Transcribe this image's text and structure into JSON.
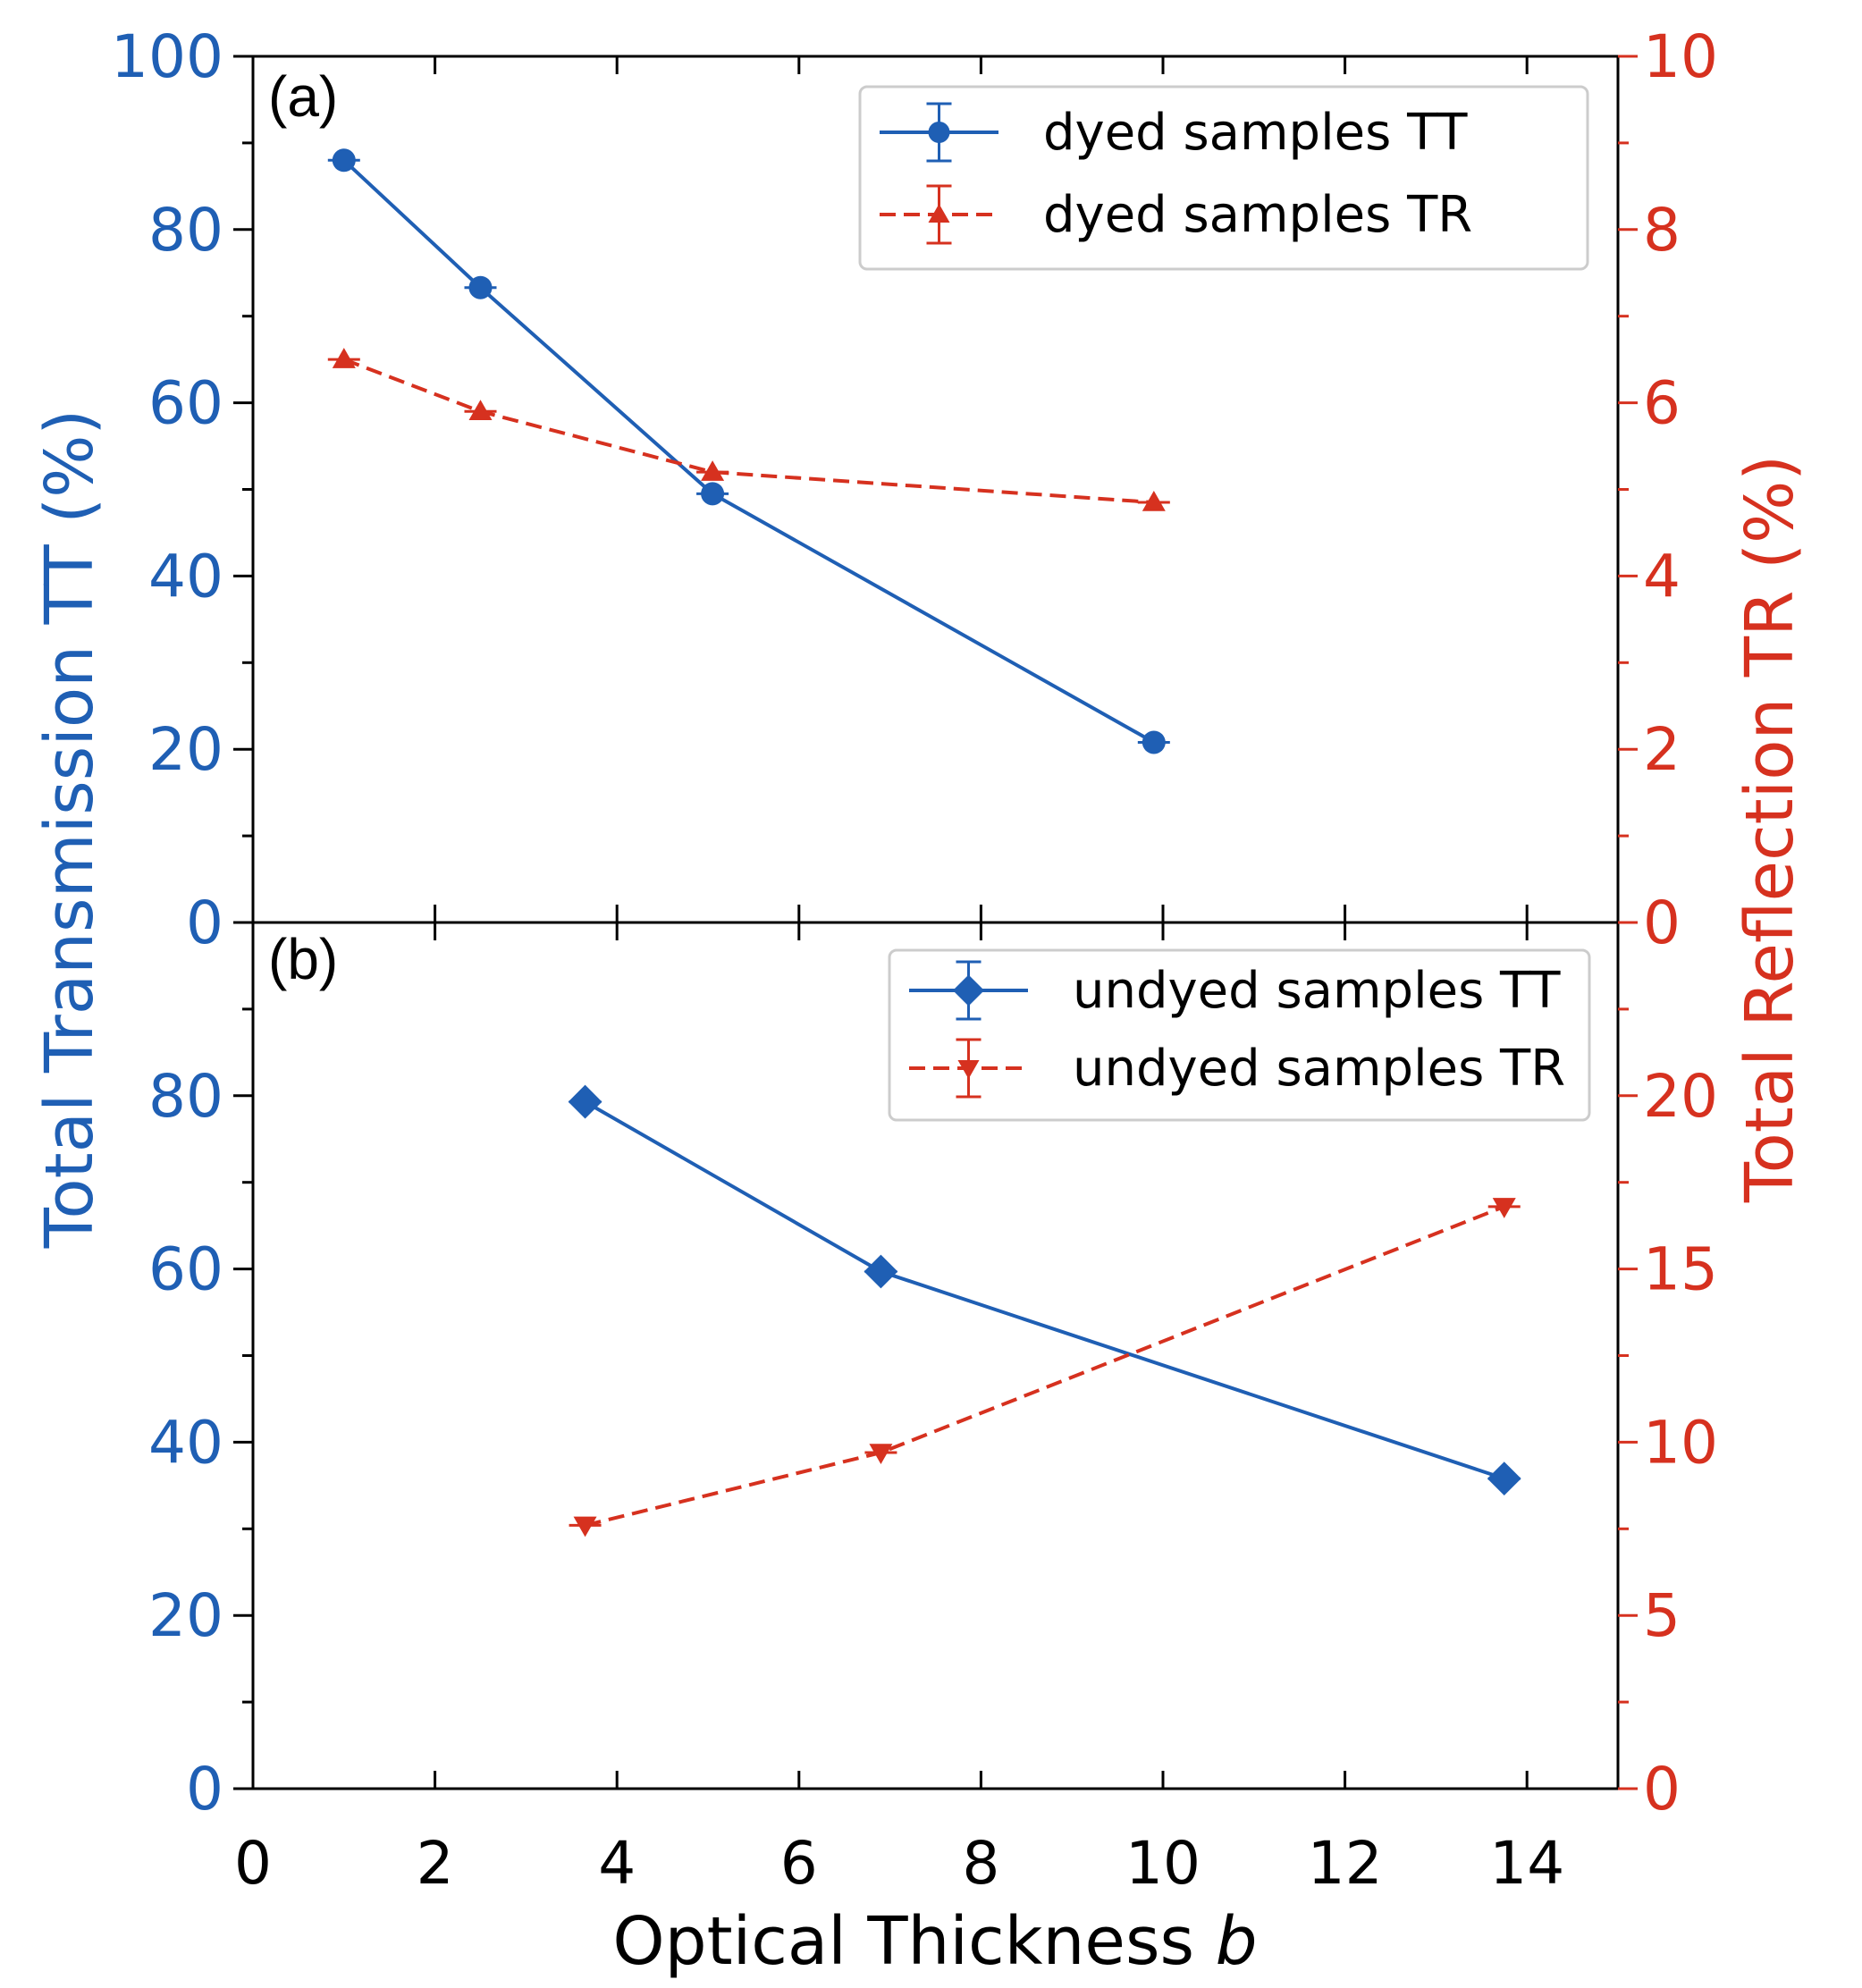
{
  "colors": {
    "tt": "#1f5fb4",
    "tr": "#d6311f",
    "axis": "#000000",
    "legend_border": "#cccccc"
  },
  "labels": {
    "ylabel_left": "Total Transmission TT (%)",
    "ylabel_right": "Total Reflection TR (%)",
    "xlabel_main": "Optical Thickness ",
    "xlabel_var": "b"
  },
  "chart_data": [
    {
      "panel": "(a)",
      "type": "line",
      "xlim": [
        0,
        15
      ],
      "x_ticks": [
        0,
        2,
        4,
        6,
        8,
        10,
        12,
        14
      ],
      "y_left": {
        "lim": [
          0,
          100
        ],
        "ticks": [
          0,
          20,
          40,
          60,
          80,
          100
        ]
      },
      "y_right": {
        "lim": [
          0,
          10
        ],
        "ticks": [
          0,
          2,
          4,
          6,
          8,
          10
        ]
      },
      "legend_position": "top-right",
      "series": [
        {
          "name": "dyed samples TT",
          "axis": "left",
          "style": "solid",
          "marker": "circle",
          "x": [
            1.0,
            2.5,
            5.05,
            9.9
          ],
          "y": [
            88,
            73.3,
            49.5,
            20.8
          ]
        },
        {
          "name": "dyed samples TR",
          "axis": "right",
          "style": "dashed",
          "marker": "triangle-up",
          "x": [
            1.0,
            2.5,
            5.05,
            9.9
          ],
          "y": [
            6.5,
            5.9,
            5.2,
            4.85
          ]
        }
      ]
    },
    {
      "panel": "(b)",
      "type": "line",
      "xlim": [
        0,
        15
      ],
      "x_ticks": [
        0,
        2,
        4,
        6,
        8,
        10,
        12,
        14
      ],
      "y_left": {
        "lim": [
          0,
          100
        ],
        "ticks": [
          0,
          20,
          40,
          60,
          80
        ]
      },
      "y_right": {
        "lim": [
          0,
          25
        ],
        "ticks": [
          0,
          5,
          10,
          15,
          20
        ]
      },
      "legend_position": "top-right",
      "series": [
        {
          "name": "undyed samples TT",
          "axis": "left",
          "style": "solid",
          "marker": "diamond",
          "x": [
            3.65,
            6.9,
            13.75
          ],
          "y": [
            79.3,
            59.7,
            35.8
          ]
        },
        {
          "name": "undyed samples TR",
          "axis": "right",
          "style": "dashed",
          "marker": "triangle-down",
          "x": [
            3.65,
            6.9,
            13.75
          ],
          "y": [
            7.6,
            9.7,
            16.8
          ]
        }
      ]
    }
  ]
}
